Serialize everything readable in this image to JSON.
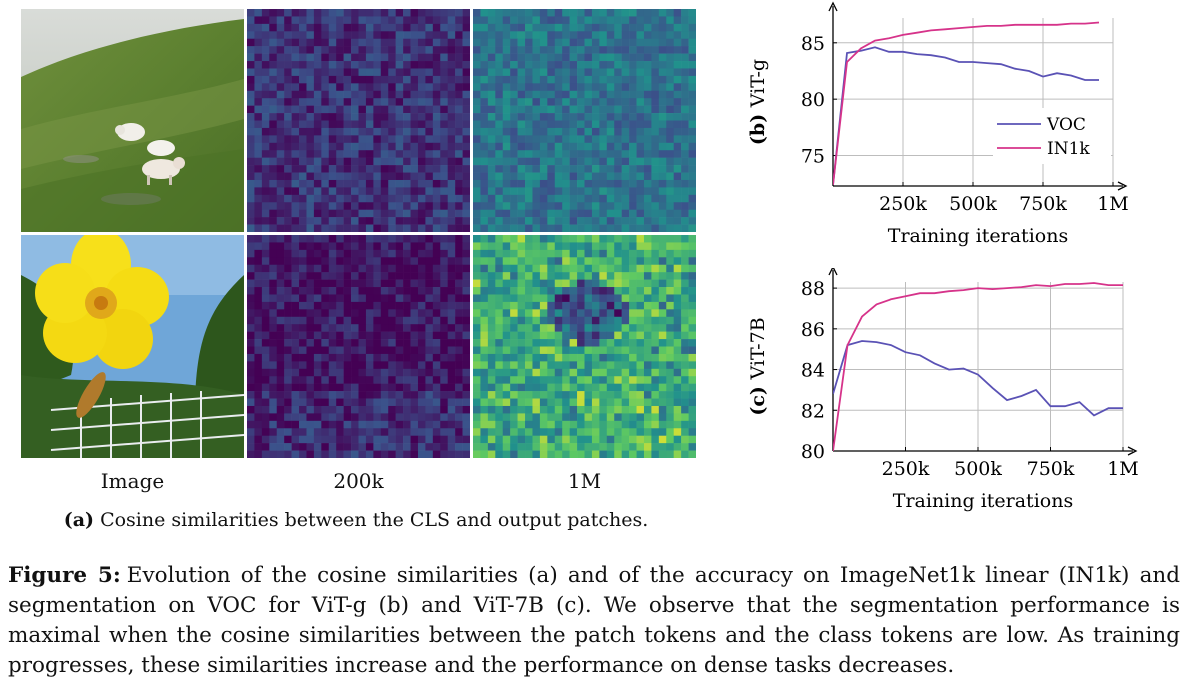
{
  "panel_a": {
    "column_labels": [
      "Image",
      "200k",
      "1M"
    ],
    "caption_label": "(a)",
    "caption_text": "Cosine similarities between the CLS and output patches.",
    "rows": [
      {
        "image": "sheep-on-hillside-photo"
      },
      {
        "image": "yellow-flower-photo"
      }
    ]
  },
  "chart_data": [
    {
      "type": "line",
      "panel_label": "(b)",
      "ylabel": "ViT-g",
      "xlabel": "Training iterations",
      "x_ticks": [
        "250k",
        "500k",
        "750k",
        "1M"
      ],
      "x_tick_values": [
        250000,
        500000,
        750000,
        1000000
      ],
      "y_ticks": [
        75,
        80,
        85
      ],
      "xlim": [
        0,
        1000000
      ],
      "ylim": [
        72.3,
        87.2
      ],
      "grid": true,
      "legend": "right",
      "series": [
        {
          "name": "VOC",
          "color": "#5a52b5",
          "x": [
            0,
            50000,
            100000,
            150000,
            200000,
            250000,
            300000,
            350000,
            400000,
            450000,
            500000,
            550000,
            600000,
            650000,
            700000,
            750000,
            800000,
            850000,
            900000,
            950000
          ],
          "y": [
            72.4,
            84.1,
            84.3,
            84.6,
            84.2,
            84.2,
            84.0,
            83.9,
            83.7,
            83.3,
            83.3,
            83.2,
            83.1,
            82.7,
            82.5,
            82.0,
            82.3,
            82.1,
            81.7,
            81.7
          ]
        },
        {
          "name": "IN1k",
          "color": "#d6338a",
          "x": [
            0,
            50000,
            100000,
            150000,
            200000,
            250000,
            300000,
            350000,
            400000,
            450000,
            500000,
            550000,
            600000,
            650000,
            700000,
            750000,
            800000,
            850000,
            900000,
            950000
          ],
          "y": [
            72.4,
            83.3,
            84.5,
            85.2,
            85.4,
            85.7,
            85.9,
            86.1,
            86.2,
            86.3,
            86.4,
            86.5,
            86.5,
            86.6,
            86.6,
            86.6,
            86.6,
            86.7,
            86.7,
            86.8
          ]
        }
      ]
    },
    {
      "type": "line",
      "panel_label": "(c)",
      "ylabel": "ViT-7B",
      "xlabel": "Training iterations",
      "x_ticks": [
        "250k",
        "500k",
        "750k",
        "1M"
      ],
      "x_tick_values": [
        250000,
        500000,
        750000,
        1000000
      ],
      "y_ticks": [
        80,
        82,
        84,
        86,
        88
      ],
      "xlim": [
        0,
        1000000
      ],
      "ylim": [
        80,
        88.3
      ],
      "grid": true,
      "series": [
        {
          "name": "VOC",
          "color": "#5a52b5",
          "x": [
            0,
            50000,
            100000,
            150000,
            200000,
            250000,
            300000,
            350000,
            400000,
            450000,
            500000,
            550000,
            600000,
            650000,
            700000,
            750000,
            800000,
            850000,
            900000,
            950000,
            1000000
          ],
          "y": [
            82.8,
            85.2,
            85.4,
            85.35,
            85.2,
            84.85,
            84.7,
            84.3,
            84.0,
            84.05,
            83.75,
            83.1,
            82.5,
            82.7,
            83.0,
            82.2,
            82.2,
            82.4,
            81.75,
            82.1,
            82.1
          ]
        },
        {
          "name": "IN1k",
          "color": "#d6338a",
          "x": [
            0,
            50000,
            100000,
            150000,
            200000,
            250000,
            300000,
            350000,
            400000,
            450000,
            500000,
            550000,
            600000,
            650000,
            700000,
            750000,
            800000,
            850000,
            900000,
            950000,
            1000000
          ],
          "y": [
            80.0,
            85.2,
            86.6,
            87.2,
            87.45,
            87.6,
            87.75,
            87.75,
            87.85,
            87.9,
            88.0,
            87.95,
            88.0,
            88.05,
            88.15,
            88.1,
            88.2,
            88.2,
            88.25,
            88.15,
            88.15
          ]
        }
      ]
    }
  ],
  "figure_caption": {
    "label": "Figure 5:",
    "text": "Evolution of the cosine similarities (a) and of the accuracy on ImageNet1k linear (IN1k) and segmentation on VOC for ViT-g (b) and ViT-7B (c). We observe that the segmentation performance is maximal when the cosine similarities between the patch tokens and the class tokens are low. As training progresses, these similarities increase and the performance on dense tasks decreases."
  },
  "colors": {
    "heatmap_low": "#3d0b5e",
    "heatmap_mid": "#2a8a8c",
    "heatmap_high": "#d2e33c"
  }
}
